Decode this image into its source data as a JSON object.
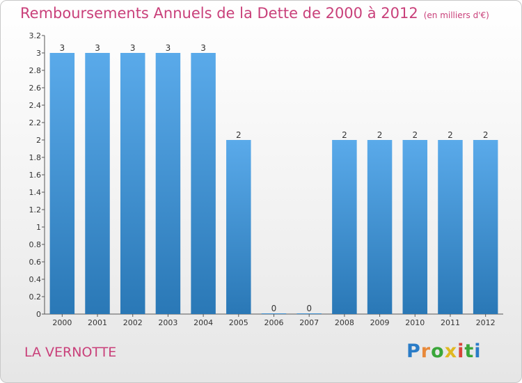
{
  "header": {
    "title": "Remboursements Annuels de la Dette de 2000 à 2012",
    "unit": "(en milliers d'€)"
  },
  "footer": {
    "commune": "LA VERNOTTE",
    "brand": "Proxiti"
  },
  "colors": {
    "title": "#c9407a",
    "bar_light": "#5aaaea",
    "bar_dark": "#2a78b6",
    "brand_letters": [
      "#2a7cc7",
      "#e8893a",
      "#3aa63a",
      "#e0b821",
      "#d8443a",
      "#3aa63a",
      "#2a7cc7"
    ]
  },
  "chart_data": {
    "type": "bar",
    "title": "Remboursements Annuels de la Dette de 2000 à 2012",
    "categories": [
      "2000",
      "2001",
      "2002",
      "2003",
      "2004",
      "2005",
      "2006",
      "2007",
      "2008",
      "2009",
      "2010",
      "2011",
      "2012"
    ],
    "values": [
      3,
      3,
      3,
      3,
      3,
      2,
      0,
      0,
      2,
      2,
      2,
      2,
      2
    ],
    "data_labels": [
      "3",
      "3",
      "3",
      "3",
      "3",
      "2",
      "0",
      "0",
      "2",
      "2",
      "2",
      "2",
      "2"
    ],
    "y_ticks": [
      0,
      0.2,
      0.4,
      0.6,
      0.8,
      1,
      1.2,
      1.4,
      1.6,
      1.8,
      2,
      2.2,
      2.4,
      2.6,
      2.8,
      3,
      3.2
    ],
    "y_tick_labels": [
      "0",
      "0.2",
      "0.4",
      "0.6",
      "0.8",
      "1",
      "1.2",
      "1.4",
      "1.6",
      "1.8",
      "2",
      "2.2",
      "2.4",
      "2.6",
      "2.8",
      "3",
      "3.2"
    ],
    "ylim": [
      0,
      3.2
    ],
    "xlabel": "",
    "ylabel": "",
    "grid": false,
    "legend": "none"
  }
}
